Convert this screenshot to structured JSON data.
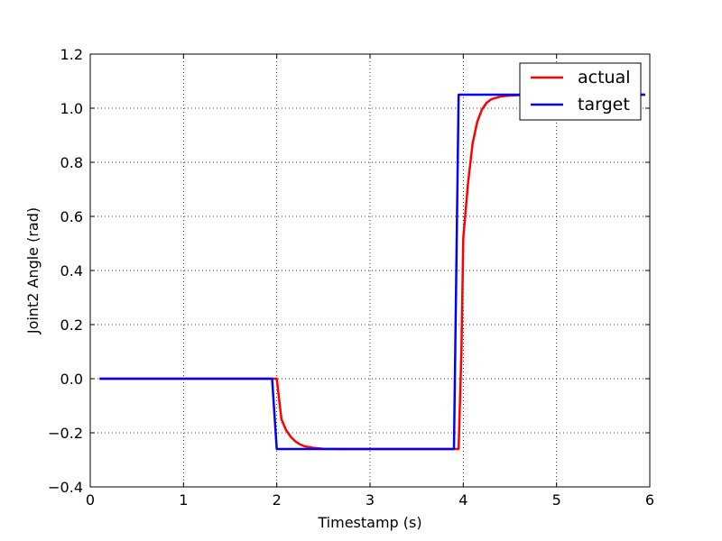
{
  "chart_data": {
    "type": "line",
    "xlabel": "Timestamp (s)",
    "ylabel": "Joint2 Angle (rad)",
    "xlim": [
      0,
      6
    ],
    "ylim": [
      -0.4,
      1.2
    ],
    "xticks": [
      0,
      1,
      2,
      3,
      4,
      5,
      6
    ],
    "xtick_labels": [
      "0",
      "1",
      "2",
      "3",
      "4",
      "5",
      "6"
    ],
    "yticks": [
      -0.4,
      -0.2,
      0.0,
      0.2,
      0.4,
      0.6,
      0.8,
      1.0,
      1.2
    ],
    "ytick_labels": [
      "−0.4",
      "−0.2",
      "0.0",
      "0.2",
      "0.4",
      "0.6",
      "0.8",
      "1.0",
      "1.2"
    ],
    "grid": true,
    "legend_position": "top-right",
    "series": [
      {
        "name": "actual",
        "color": "#ff0000",
        "points": [
          [
            0.1,
            0.0
          ],
          [
            1.0,
            0.0
          ],
          [
            1.95,
            0.0
          ],
          [
            2.0,
            0.0
          ],
          [
            2.05,
            -0.15
          ],
          [
            2.1,
            -0.19
          ],
          [
            2.15,
            -0.215
          ],
          [
            2.2,
            -0.232
          ],
          [
            2.25,
            -0.243
          ],
          [
            2.3,
            -0.25
          ],
          [
            2.4,
            -0.256
          ],
          [
            2.5,
            -0.259
          ],
          [
            2.7,
            -0.26
          ],
          [
            3.9,
            -0.26
          ],
          [
            3.95,
            -0.26
          ],
          [
            3.98,
            0.1
          ],
          [
            4.0,
            0.52
          ],
          [
            4.05,
            0.72
          ],
          [
            4.1,
            0.87
          ],
          [
            4.15,
            0.95
          ],
          [
            4.2,
            0.995
          ],
          [
            4.25,
            1.02
          ],
          [
            4.3,
            1.033
          ],
          [
            4.4,
            1.043
          ],
          [
            4.5,
            1.047
          ],
          [
            4.7,
            1.049
          ],
          [
            5.95,
            1.05
          ]
        ]
      },
      {
        "name": "target",
        "color": "#0000ff",
        "points": [
          [
            0.1,
            0.0
          ],
          [
            1.95,
            0.0
          ],
          [
            2.0,
            -0.26
          ],
          [
            3.9,
            -0.26
          ],
          [
            3.95,
            1.05
          ],
          [
            5.95,
            1.05
          ]
        ]
      }
    ]
  }
}
